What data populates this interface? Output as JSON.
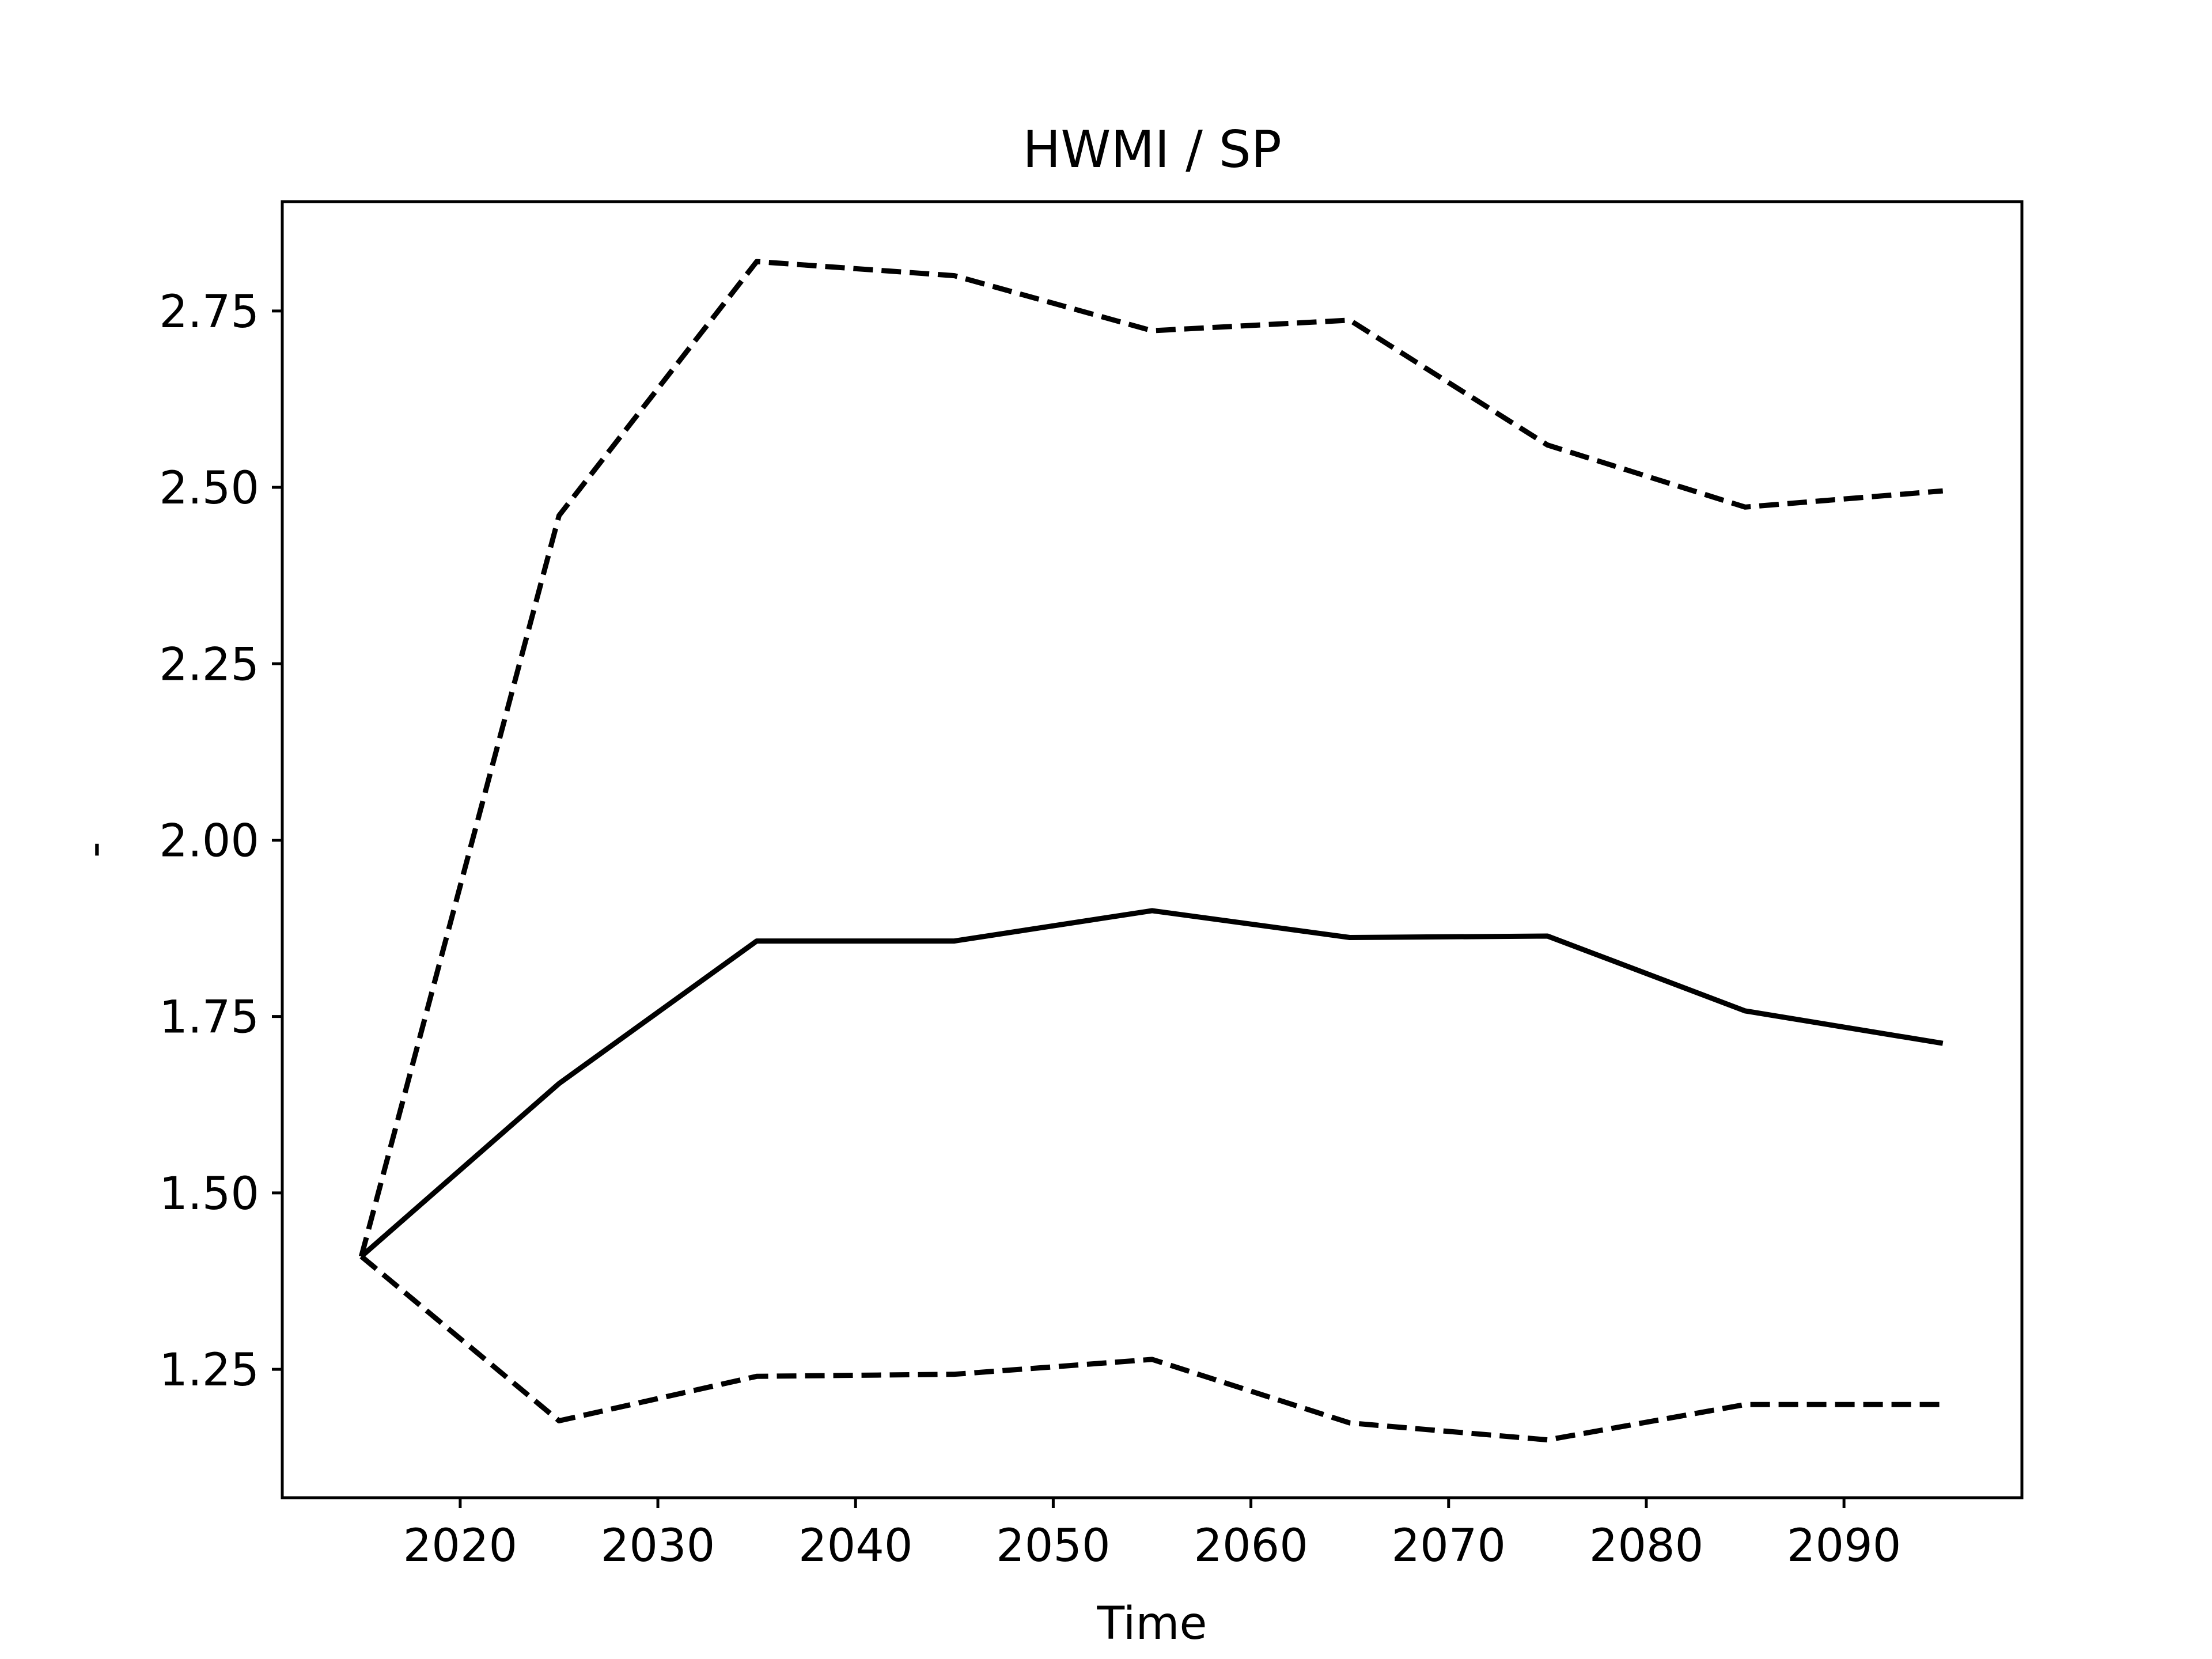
{
  "chart_data": {
    "type": "line",
    "title": "HWMI / SP",
    "xlabel": "Time",
    "ylabel": "-",
    "xlim": [
      2011,
      2099
    ],
    "ylim": [
      1.068,
      2.905
    ],
    "x_ticks": [
      2020,
      2030,
      2040,
      2050,
      2060,
      2070,
      2080,
      2090
    ],
    "y_ticks": [
      1.25,
      1.5,
      1.75,
      2.0,
      2.25,
      2.5,
      2.75
    ],
    "y_tick_labels": [
      "1.25",
      "1.50",
      "1.75",
      "2.00",
      "2.25",
      "2.50",
      "2.75"
    ],
    "grid": false,
    "legend": "none",
    "x": [
      2015,
      2025,
      2035,
      2045,
      2055,
      2065,
      2075,
      2085,
      2095
    ],
    "series": [
      {
        "style": "solid",
        "color": "#000000",
        "values": [
          1.41,
          1.655,
          1.857,
          1.857,
          1.9,
          1.862,
          1.864,
          1.758,
          1.712
        ]
      },
      {
        "style": "dashed",
        "color": "#000000",
        "values": [
          1.41,
          2.46,
          2.82,
          2.8,
          2.722,
          2.737,
          2.56,
          2.472,
          2.495
        ]
      },
      {
        "style": "dashed",
        "color": "#000000",
        "values": [
          1.41,
          1.177,
          1.24,
          1.243,
          1.264,
          1.174,
          1.15,
          1.2,
          1.2
        ]
      }
    ]
  }
}
